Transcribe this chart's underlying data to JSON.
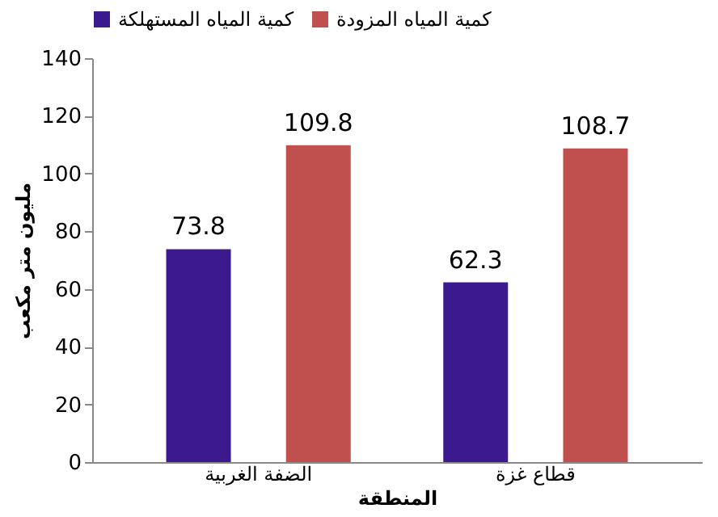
{
  "chart_data": {
    "type": "bar",
    "xlabel": "المنطقة",
    "ylabel": "مليون متر مكعب",
    "categories": [
      "الضفة الغربية",
      "قطاع غزة"
    ],
    "series": [
      {
        "name": "كمية المياه المستهلكة",
        "color": "#3a1a8c",
        "values": [
          73.8,
          62.3
        ]
      },
      {
        "name": "كمية المياه المزودة",
        "color": "#c0504d",
        "values": [
          109.8,
          108.7
        ]
      }
    ],
    "ylim": [
      0,
      140
    ],
    "yticks": [
      0,
      20,
      40,
      60,
      80,
      100,
      120,
      140
    ],
    "data_labels": true,
    "grid": false,
    "legend": "top"
  }
}
